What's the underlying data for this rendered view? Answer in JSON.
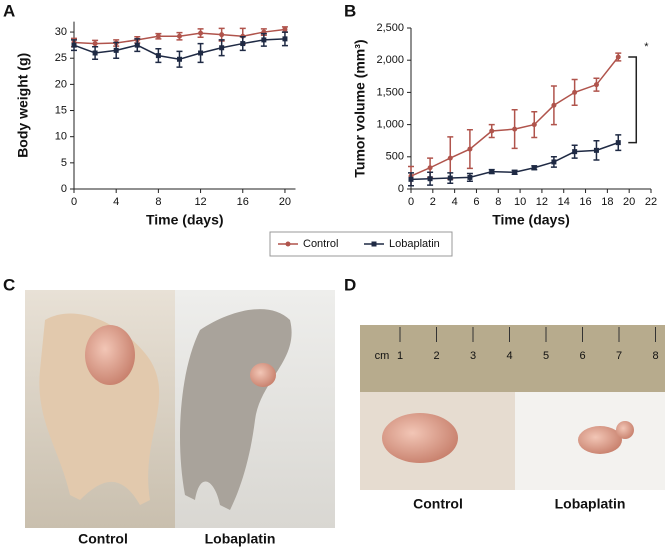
{
  "chart_data": [
    {
      "type": "line",
      "panel_label": "A",
      "x_label": "Time (days)",
      "y_label": "Body weight (g)",
      "xlim": [
        0,
        21
      ],
      "xticks": [
        0,
        4,
        8,
        12,
        16,
        20
      ],
      "ylim": [
        0,
        32
      ],
      "yticks": [
        0,
        5,
        10,
        15,
        20,
        25,
        30
      ],
      "x": [
        0,
        2,
        4,
        6,
        8,
        10,
        12,
        14,
        16,
        18,
        20
      ],
      "series": [
        {
          "name": "Control",
          "color": "#b0544c",
          "marker": "circle",
          "values": [
            28,
            27.8,
            27.9,
            28.5,
            29.2,
            29.2,
            29.8,
            29.5,
            29.2,
            30,
            30.5
          ],
          "errors": [
            0.8,
            0.6,
            0.6,
            0.6,
            0.5,
            0.7,
            0.8,
            1.2,
            1.5,
            0.6,
            0.5
          ]
        },
        {
          "name": "Lobaplatin",
          "color": "#1f2a44",
          "marker": "square",
          "values": [
            27.5,
            26,
            26.5,
            27.5,
            25.5,
            24.8,
            26,
            27,
            27.8,
            28.5,
            28.7
          ],
          "errors": [
            1.0,
            1.2,
            1.5,
            1.2,
            1.3,
            1.5,
            1.8,
            1.5,
            1.3,
            1.2,
            1.3
          ]
        }
      ]
    },
    {
      "type": "line",
      "panel_label": "B",
      "x_label": "Time (days)",
      "y_label": "Tumor volume (mm³)",
      "xlim": [
        0,
        22
      ],
      "xticks": [
        0,
        2,
        4,
        6,
        8,
        10,
        12,
        14,
        16,
        18,
        20,
        22
      ],
      "ylim": [
        0,
        2500
      ],
      "yticks": [
        0,
        500,
        {
          "value": 1000,
          "label": "1,000"
        },
        {
          "value": 1500,
          "label": "1,500"
        },
        {
          "value": 2000,
          "label": "2,000"
        },
        {
          "value": 2500,
          "label": "2,500"
        }
      ],
      "x": [
        0,
        1.75,
        3.6,
        5.4,
        7.4,
        9.5,
        11.3,
        13.1,
        15,
        17,
        19
      ],
      "annotation": "*",
      "series": [
        {
          "name": "Control",
          "color": "#b0544c",
          "marker": "circle",
          "values": [
            200,
            330,
            480,
            620,
            900,
            930,
            1000,
            1300,
            1500,
            1620,
            2050
          ],
          "errors": [
            150,
            150,
            330,
            300,
            100,
            300,
            200,
            300,
            200,
            100,
            60
          ]
        },
        {
          "name": "Lobaplatin",
          "color": "#1f2a44",
          "marker": "square",
          "values": [
            150,
            160,
            170,
            180,
            270,
            260,
            330,
            420,
            580,
            600,
            720
          ],
          "errors": [
            100,
            100,
            80,
            60,
            30,
            30,
            30,
            80,
            100,
            150,
            120
          ]
        }
      ]
    }
  ],
  "photos": {
    "C": {
      "panel_label": "C",
      "labels": [
        "Control",
        "Lobaplatin"
      ]
    },
    "D": {
      "panel_label": "D",
      "labels": [
        "Control",
        "Lobaplatin"
      ],
      "ruler_unit": "cm",
      "ruler_marks": [
        "1",
        "2",
        "3",
        "4",
        "5",
        "6",
        "7",
        "8"
      ]
    }
  }
}
